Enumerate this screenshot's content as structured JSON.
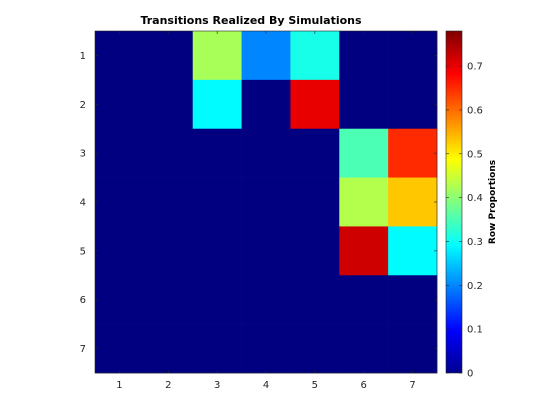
{
  "chart_data": {
    "type": "heatmap",
    "title": "Transitions Realized By Simulations",
    "xlabel": "",
    "ylabel": "",
    "x_categories": [
      "1",
      "2",
      "3",
      "4",
      "5",
      "6",
      "7"
    ],
    "y_categories": [
      "1",
      "2",
      "3",
      "4",
      "5",
      "6",
      "7"
    ],
    "values": [
      [
        0,
        0,
        0.42,
        0.2,
        0.31,
        0,
        0
      ],
      [
        0,
        0,
        0.29,
        0,
        0.7,
        0,
        0
      ],
      [
        0,
        0,
        0,
        0,
        0,
        0.35,
        0.65
      ],
      [
        0,
        0,
        0,
        0,
        0,
        0.43,
        0.53
      ],
      [
        0,
        0,
        0,
        0,
        0,
        0.72,
        0.29
      ],
      [
        0,
        0,
        0,
        0,
        0,
        0,
        0
      ],
      [
        0,
        0,
        0,
        0,
        0,
        0,
        0
      ]
    ],
    "colormap": "jet",
    "colorbar": {
      "label": "Row Proportions",
      "range": [
        0,
        0.78
      ],
      "ticks": [
        0,
        0.1,
        0.2,
        0.3,
        0.4,
        0.5,
        0.6,
        0.7
      ],
      "tick_labels": [
        "0",
        "0.1",
        "0.2",
        "0.3",
        "0.4",
        "0.5",
        "0.6",
        "0.7"
      ]
    },
    "grid": false
  }
}
